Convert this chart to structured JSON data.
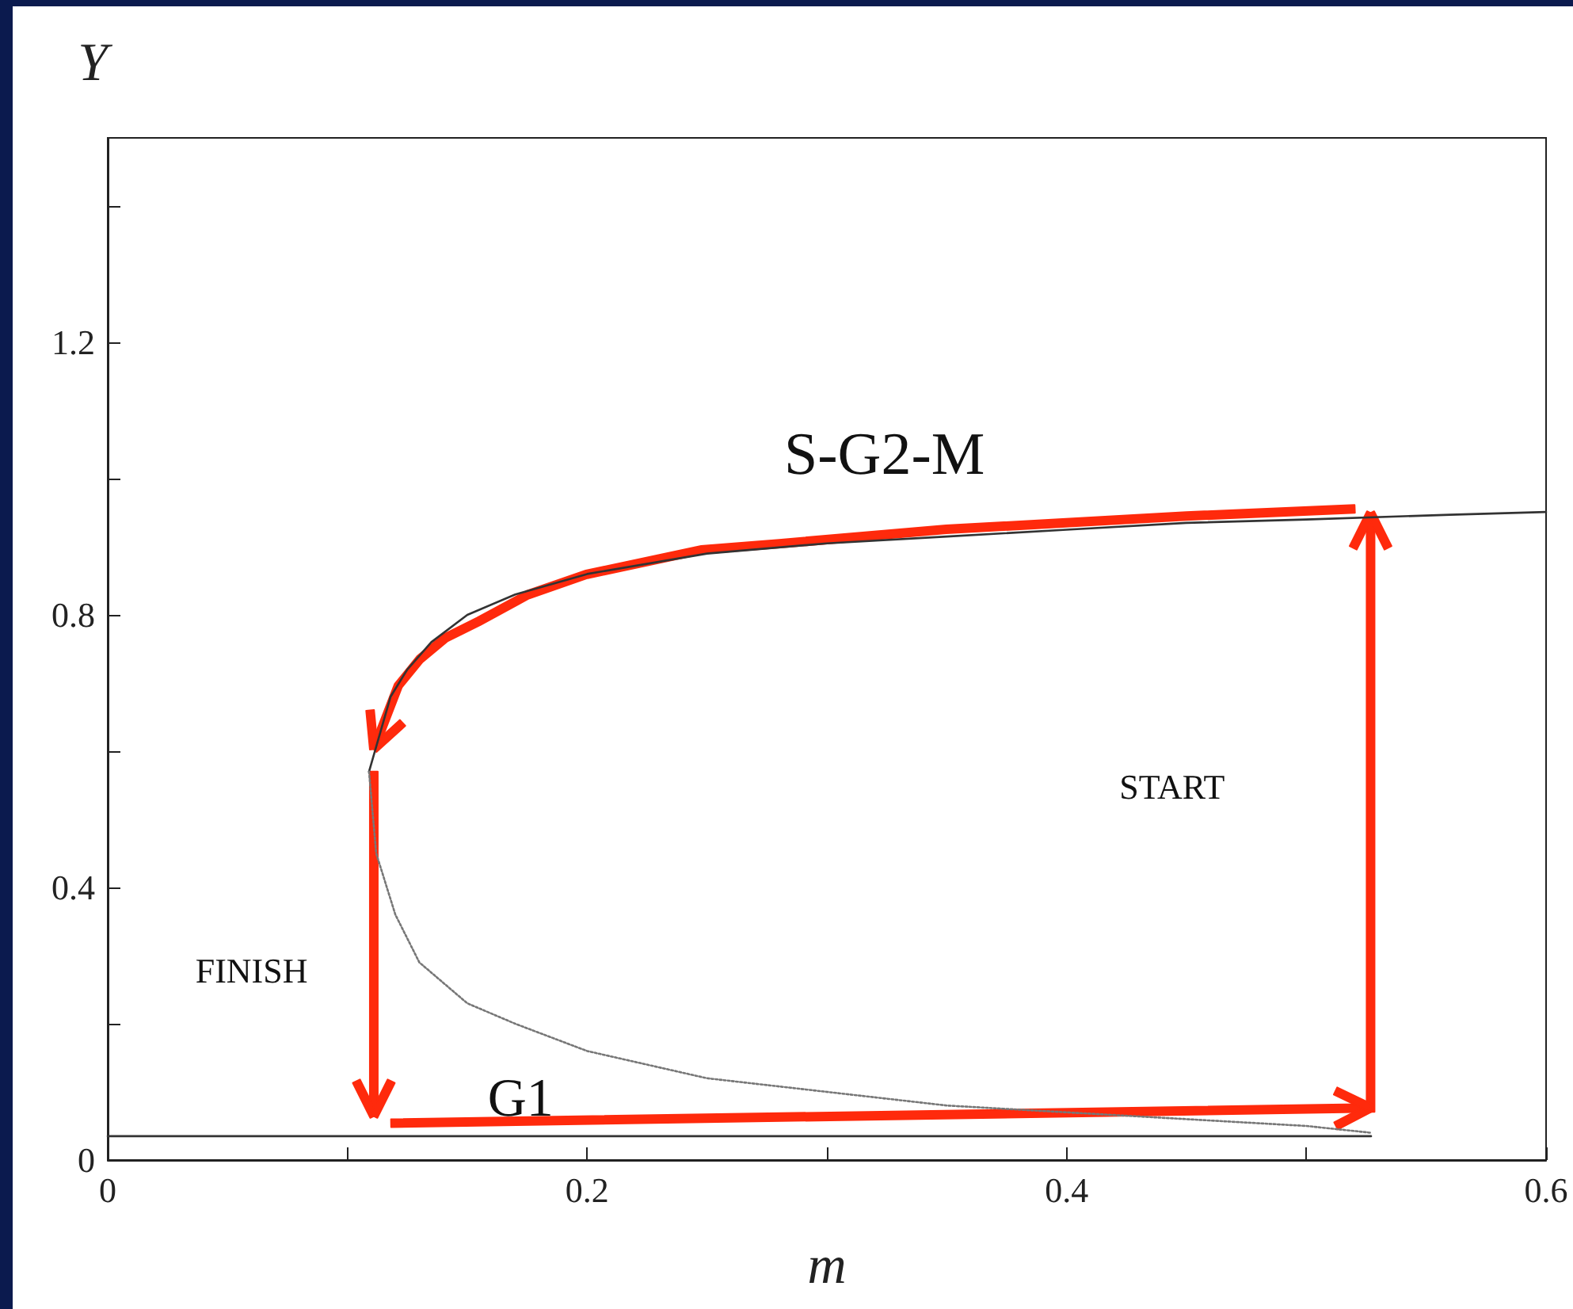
{
  "chart_data": {
    "type": "line",
    "xlabel": "m",
    "ylabel": "Y",
    "xlim": [
      0,
      0.6
    ],
    "xticks": [
      0,
      {
        "value": 0.1,
        "label": null
      },
      0.2,
      {
        "value": 0.3,
        "label": null
      },
      0.4,
      {
        "value": 0.5,
        "label": null
      },
      0.6
    ],
    "ylim": [
      0,
      1.5
    ],
    "yticks": [
      0,
      {
        "value": 0.2,
        "label": null
      },
      0.4,
      {
        "value": 0.6,
        "label": null
      },
      0.8,
      {
        "value": 1.0,
        "label": null
      },
      1.2,
      {
        "value": 1.4,
        "label": null
      }
    ],
    "grid": false,
    "series": [
      {
        "color": "#333333",
        "line_style": "solid",
        "x": [
          0.109,
          0.118,
          0.125,
          0.135,
          0.15,
          0.17,
          0.2,
          0.25,
          0.3,
          0.35,
          0.4,
          0.45,
          0.5,
          0.56,
          0.6
        ],
        "values": [
          0.57,
          0.68,
          0.72,
          0.76,
          0.8,
          0.83,
          0.86,
          0.89,
          0.905,
          0.915,
          0.925,
          0.935,
          0.94,
          0.947,
          0.951
        ]
      },
      {
        "color": "#777777",
        "line_style": "dotted",
        "x": [
          0.109,
          0.112,
          0.12,
          0.13,
          0.15,
          0.17,
          0.2,
          0.25,
          0.3,
          0.35,
          0.4,
          0.45,
          0.5,
          0.527
        ],
        "values": [
          0.57,
          0.45,
          0.36,
          0.29,
          0.23,
          0.2,
          0.16,
          0.12,
          0.1,
          0.08,
          0.07,
          0.06,
          0.05,
          0.04
        ]
      },
      {
        "color": "#333333",
        "line_style": "solid",
        "x": [
          0,
          0.1,
          0.2,
          0.3,
          0.4,
          0.5,
          0.527
        ],
        "values": [
          0.035,
          0.035,
          0.035,
          0.035,
          0.035,
          0.035,
          0.035
        ]
      }
    ],
    "annotations": [
      "S-G2-M",
      "START",
      "FINISH",
      "G1"
    ]
  }
}
